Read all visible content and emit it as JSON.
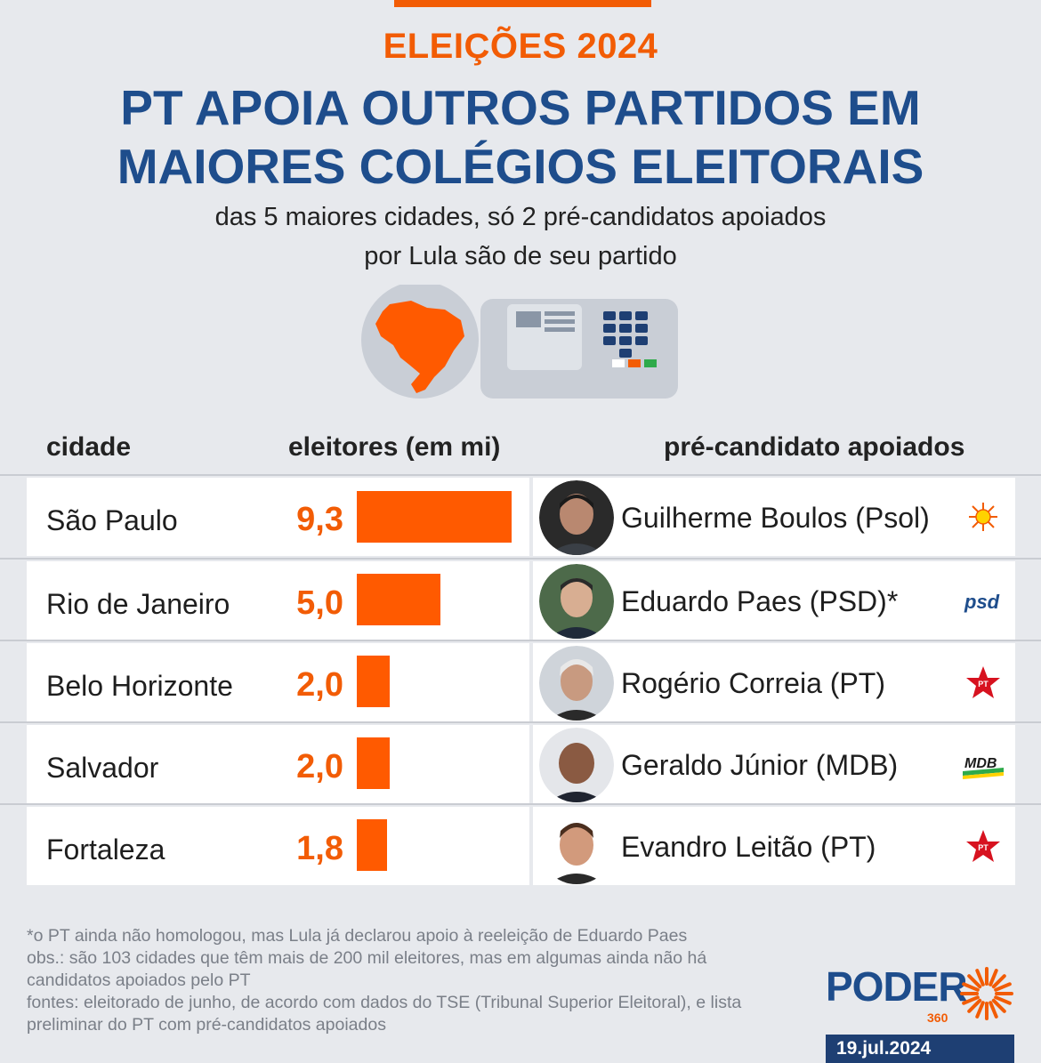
{
  "header": {
    "kicker": "ELEIÇÕES 2024",
    "title_line1": "PT APOIA OUTROS PARTIDOS EM",
    "title_line2": "MAIORES COLÉGIOS ELEITORAIS",
    "subtitle_line1": "das 5 maiores cidades, só 2 pré-candidatos apoiados",
    "subtitle_line2": "por Lula são de seu partido"
  },
  "columns": {
    "city": "cidade",
    "voters": "eleitores (em mi)",
    "candidate": "pré-candidato apoiados"
  },
  "chart_data": {
    "type": "bar",
    "title": "PT APOIA OUTROS PARTIDOS EM MAIORES COLÉGIOS ELEITORAIS",
    "xlabel": "",
    "ylabel": "eleitores (em mi)",
    "orientation": "horizontal",
    "categories": [
      "São Paulo",
      "Rio de Janeiro",
      "Belo Horizonte",
      "Salvador",
      "Fortaleza"
    ],
    "values": [
      9.3,
      5.0,
      2.0,
      2.0,
      1.8
    ],
    "value_labels": [
      "9,3",
      "5,0",
      "2,0",
      "2,0",
      "1,8"
    ],
    "xlim": [
      0,
      9.3
    ],
    "bar_color": "#ff5a00"
  },
  "rows": [
    {
      "city": "São Paulo",
      "value": "9,3",
      "candidate": "Guilherme Boulos (Psol)",
      "party": "Psol",
      "logo": "psol-sun-icon"
    },
    {
      "city": "Rio de Janeiro",
      "value": "5,0",
      "candidate": "Eduardo Paes (PSD)*",
      "party": "PSD",
      "logo": "psd-logo",
      "logo_text": "psd"
    },
    {
      "city": "Belo Horizonte",
      "value": "2,0",
      "candidate": "Rogério Correia (PT)",
      "party": "PT",
      "logo": "pt-star-icon",
      "logo_text": "PT"
    },
    {
      "city": "Salvador",
      "value": "2,0",
      "candidate": "Geraldo Júnior (MDB)",
      "party": "MDB",
      "logo": "mdb-logo",
      "logo_text": "MDB"
    },
    {
      "city": "Fortaleza",
      "value": "1,8",
      "candidate": "Evandro Leitão (PT)",
      "party": "PT",
      "logo": "pt-star-icon",
      "logo_text": "PT"
    }
  ],
  "notes": {
    "note1": "*o PT ainda não homologou, mas Lula já declarou apoio à reeleição de Eduardo Paes",
    "note2": "obs.: são 103 cidades que têm mais de 200 mil eleitores, mas em algumas ainda não há candidatos apoiados pelo PT",
    "note3": "fontes: eleitorado de junho, de acordo com dados do TSE (Tribunal Superior Eleitoral), e lista preliminar do PT com pré-candidatos apoiados"
  },
  "brand": {
    "name": "PODER",
    "sub": "360",
    "date": "19.jul.2024"
  },
  "colors": {
    "accent": "#f25c05",
    "title": "#1e4d8c",
    "bar": "#ff5a00",
    "date_bg": "#1e3f73"
  }
}
